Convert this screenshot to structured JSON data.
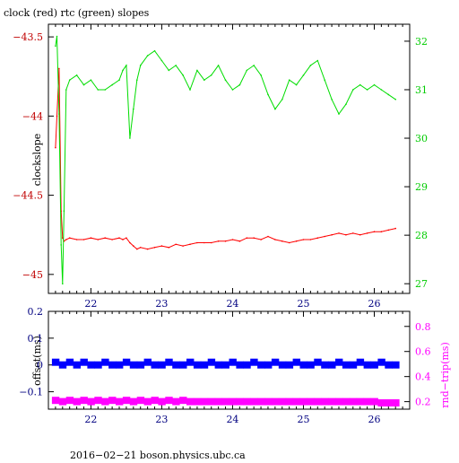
{
  "colors": {
    "clock": "#ff0000",
    "rtc": "#00dd00",
    "offset": "#0000ff",
    "rndtrip": "#ff00ff",
    "axis": "#000000"
  },
  "chart_data": [
    {
      "type": "line",
      "title": "clock (red) rtc (green) slopes",
      "ylabel": "clockslope",
      "xlim": [
        21.4,
        26.5
      ],
      "ylim_left": [
        -45.12,
        -43.42
      ],
      "ylim_right": [
        26.8,
        32.35
      ],
      "x_ticks": [
        22,
        23,
        24,
        25,
        26
      ],
      "x_tick_labels": [
        "22",
        "23",
        "24",
        "25",
        "26"
      ],
      "y_left_ticks": [
        -43.5,
        -44,
        -44.5,
        -45
      ],
      "y_left_tick_labels": [
        "−43.5",
        "−44",
        "−44.5",
        "−45"
      ],
      "y_right_ticks": [
        32,
        31,
        30,
        29,
        28,
        27
      ],
      "y_right_tick_labels": [
        "32",
        "31",
        "30",
        "29",
        "28",
        "27"
      ],
      "grid": false,
      "series": [
        {
          "name": "clock",
          "color": "#ff0000",
          "axis": "left",
          "x": [
            21.5,
            21.52,
            21.55,
            21.58,
            21.6,
            21.62,
            21.65,
            21.7,
            21.8,
            21.9,
            22.0,
            22.1,
            22.2,
            22.3,
            22.4,
            22.45,
            22.5,
            22.55,
            22.6,
            22.65,
            22.7,
            22.8,
            22.9,
            23.0,
            23.1,
            23.2,
            23.3,
            23.4,
            23.5,
            23.6,
            23.7,
            23.8,
            23.9,
            24.0,
            24.1,
            24.2,
            24.3,
            24.4,
            24.5,
            24.6,
            24.7,
            24.8,
            24.9,
            25.0,
            25.1,
            25.2,
            25.3,
            25.4,
            25.5,
            25.6,
            25.7,
            25.8,
            25.9,
            26.0,
            26.1,
            26.2,
            26.3
          ],
          "y": [
            -44.2,
            -44.0,
            -43.7,
            -44.6,
            -44.77,
            -44.79,
            -44.78,
            -44.77,
            -44.78,
            -44.78,
            -44.77,
            -44.78,
            -44.77,
            -44.78,
            -44.77,
            -44.78,
            -44.77,
            -44.8,
            -44.82,
            -44.84,
            -44.83,
            -44.84,
            -44.83,
            -44.82,
            -44.83,
            -44.81,
            -44.82,
            -44.81,
            -44.8,
            -44.8,
            -44.8,
            -44.79,
            -44.79,
            -44.78,
            -44.79,
            -44.77,
            -44.77,
            -44.78,
            -44.76,
            -44.78,
            -44.79,
            -44.8,
            -44.79,
            -44.78,
            -44.78,
            -44.77,
            -44.76,
            -44.75,
            -44.74,
            -44.75,
            -44.74,
            -44.75,
            -44.74,
            -44.73,
            -44.73,
            -44.72,
            -44.71
          ]
        },
        {
          "name": "rtc",
          "color": "#00dd00",
          "axis": "right",
          "x": [
            21.5,
            21.52,
            21.55,
            21.58,
            21.6,
            21.62,
            21.65,
            21.7,
            21.8,
            21.9,
            22.0,
            22.1,
            22.2,
            22.3,
            22.4,
            22.45,
            22.5,
            22.55,
            22.6,
            22.65,
            22.7,
            22.8,
            22.9,
            23.0,
            23.1,
            23.2,
            23.3,
            23.4,
            23.5,
            23.6,
            23.7,
            23.8,
            23.9,
            24.0,
            24.1,
            24.2,
            24.3,
            24.4,
            24.5,
            24.6,
            24.7,
            24.8,
            24.9,
            25.0,
            25.1,
            25.2,
            25.3,
            25.4,
            25.5,
            25.6,
            25.7,
            25.8,
            25.9,
            26.0,
            26.1,
            26.2,
            26.3
          ],
          "y": [
            31.9,
            32.1,
            30.5,
            27.8,
            27.0,
            28.5,
            31.0,
            31.2,
            31.3,
            31.1,
            31.2,
            31.0,
            31.0,
            31.1,
            31.2,
            31.4,
            31.5,
            30.0,
            30.6,
            31.2,
            31.5,
            31.7,
            31.8,
            31.6,
            31.4,
            31.5,
            31.3,
            31.0,
            31.4,
            31.2,
            31.3,
            31.5,
            31.2,
            31.0,
            31.1,
            31.4,
            31.5,
            31.3,
            30.9,
            30.6,
            30.8,
            31.2,
            31.1,
            31.3,
            31.5,
            31.6,
            31.2,
            30.8,
            30.5,
            30.7,
            31.0,
            31.1,
            31.0,
            31.1,
            31.0,
            30.9,
            30.8
          ]
        }
      ]
    },
    {
      "type": "scatter",
      "ylabel_left": "offset(ms)",
      "ylabel_right": "rnd−trip(ms)",
      "xlim": [
        21.4,
        26.5
      ],
      "ylim_left": [
        -0.165,
        0.2
      ],
      "ylim_right": [
        0.14,
        0.92
      ],
      "x_ticks": [
        22,
        23,
        24,
        25,
        26
      ],
      "x_tick_labels": [
        "22",
        "23",
        "24",
        "25",
        "26"
      ],
      "y_left_ticks": [
        0.2,
        0.1,
        0,
        -0.1
      ],
      "y_left_tick_labels": [
        "0.2",
        "0.1",
        "0",
        "−0.1"
      ],
      "y_right_ticks": [
        0.8,
        0.6,
        0.4,
        0.2
      ],
      "y_right_tick_labels": [
        "0.8",
        "0.6",
        "0.4",
        "0.2"
      ],
      "grid": false,
      "series": [
        {
          "name": "offset",
          "color": "#0000ff",
          "axis": "left",
          "x": [
            21.5,
            21.6,
            21.7,
            21.8,
            21.9,
            22.0,
            22.1,
            22.2,
            22.3,
            22.4,
            22.5,
            22.6,
            22.7,
            22.8,
            22.9,
            23.0,
            23.1,
            23.2,
            23.3,
            23.4,
            23.5,
            23.6,
            23.7,
            23.8,
            23.9,
            24.0,
            24.1,
            24.2,
            24.3,
            24.4,
            24.5,
            24.6,
            24.7,
            24.8,
            24.9,
            25.0,
            25.1,
            25.2,
            25.3,
            25.4,
            25.5,
            25.6,
            25.7,
            25.8,
            25.9,
            26.0,
            26.1,
            26.2,
            26.3
          ],
          "y": [
            0.01,
            0.0,
            0.01,
            0.0,
            0.01,
            0.0,
            0.0,
            0.01,
            0.0,
            0.0,
            0.01,
            0.0,
            0.0,
            0.01,
            0.0,
            0.0,
            0.01,
            0.0,
            0.0,
            0.01,
            0.0,
            0.0,
            0.01,
            0.0,
            0.0,
            0.01,
            0.0,
            0.0,
            0.01,
            0.0,
            0.0,
            0.01,
            0.0,
            0.0,
            0.01,
            0.0,
            0.0,
            0.01,
            0.0,
            0.0,
            0.01,
            0.0,
            0.0,
            0.01,
            0.0,
            0.0,
            0.01,
            0.0,
            0.0
          ]
        },
        {
          "name": "rnd-trip",
          "color": "#ff00ff",
          "axis": "right",
          "x": [
            21.5,
            21.6,
            21.7,
            21.8,
            21.9,
            22.0,
            22.1,
            22.2,
            22.3,
            22.4,
            22.5,
            22.6,
            22.7,
            22.8,
            22.9,
            23.0,
            23.1,
            23.2,
            23.3,
            23.4,
            23.5,
            23.6,
            23.7,
            23.8,
            23.9,
            24.0,
            24.1,
            24.2,
            24.3,
            24.4,
            24.5,
            24.6,
            24.7,
            24.8,
            24.9,
            25.0,
            25.1,
            25.2,
            25.3,
            25.4,
            25.5,
            25.6,
            25.7,
            25.8,
            25.9,
            26.0,
            26.1,
            26.2,
            26.3
          ],
          "y": [
            0.21,
            0.2,
            0.21,
            0.2,
            0.21,
            0.2,
            0.21,
            0.2,
            0.21,
            0.2,
            0.21,
            0.2,
            0.21,
            0.2,
            0.21,
            0.2,
            0.21,
            0.2,
            0.21,
            0.2,
            0.2,
            0.2,
            0.2,
            0.2,
            0.2,
            0.2,
            0.2,
            0.2,
            0.2,
            0.2,
            0.2,
            0.2,
            0.2,
            0.2,
            0.2,
            0.2,
            0.2,
            0.2,
            0.2,
            0.2,
            0.2,
            0.2,
            0.2,
            0.2,
            0.2,
            0.2,
            0.19,
            0.19,
            0.19
          ]
        }
      ]
    }
  ],
  "footer": "2016−02−21 boson.physics.ubc.ca"
}
